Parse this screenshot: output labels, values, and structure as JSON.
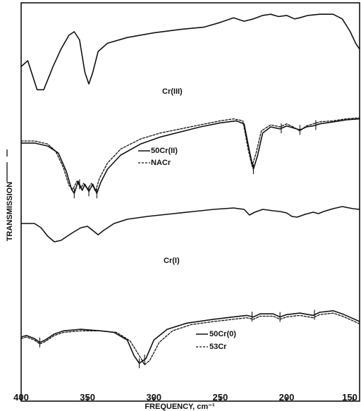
{
  "chart_data": {
    "type": "line",
    "xlabel": "FREQUENCY, cm⁻¹",
    "ylabel": "TRANSMISSION",
    "xlim": [
      400,
      145
    ],
    "x_ticks": [
      "400",
      "350",
      "300",
      "250",
      "200",
      "150"
    ],
    "x_tick_values": [
      400,
      350,
      300,
      250,
      200,
      150
    ],
    "grid": false,
    "legend": "none",
    "panels": [
      {
        "label": "Cr(III)",
        "series": [
          {
            "style": "solid",
            "points": [
              [
                400,
                0.55
              ],
              [
                395,
                0.6
              ],
              [
                388,
                0.35
              ],
              [
                383,
                0.35
              ],
              [
                376,
                0.55
              ],
              [
                370,
                0.7
              ],
              [
                364,
                0.82
              ],
              [
                360,
                0.85
              ],
              [
                356,
                0.78
              ],
              [
                352,
                0.5
              ],
              [
                349,
                0.4
              ],
              [
                346,
                0.5
              ],
              [
                342,
                0.68
              ],
              [
                335,
                0.75
              ],
              [
                320,
                0.8
              ],
              [
                300,
                0.84
              ],
              [
                280,
                0.87
              ],
              [
                262,
                0.89
              ],
              [
                250,
                0.93
              ],
              [
                240,
                0.97
              ],
              [
                232,
                0.94
              ],
              [
                225,
                0.96
              ],
              [
                218,
                0.99
              ],
              [
                212,
                1.0
              ],
              [
                206,
                0.98
              ],
              [
                200,
                0.99
              ],
              [
                194,
                0.96
              ],
              [
                190,
                0.97
              ],
              [
                184,
                0.99
              ],
              [
                175,
                1.0
              ],
              [
                165,
                1.0
              ],
              [
                158,
                0.96
              ],
              [
                152,
                0.85
              ],
              [
                148,
                0.75
              ],
              [
                145,
                0.7
              ]
            ]
          }
        ]
      },
      {
        "label": "",
        "legend_entries": [
          {
            "label": "50Cr(II)",
            "style": "solid"
          },
          {
            "label": "NACr",
            "style": "dashed"
          }
        ],
        "series": [
          {
            "style": "solid",
            "points": [
              [
                400,
                0.68
              ],
              [
                390,
                0.68
              ],
              [
                380,
                0.65
              ],
              [
                372,
                0.58
              ],
              [
                366,
                0.4
              ],
              [
                362,
                0.22
              ],
              [
                360,
                0.18
              ],
              [
                357,
                0.3
              ],
              [
                354,
                0.21
              ],
              [
                352,
                0.27
              ],
              [
                349,
                0.2
              ],
              [
                346,
                0.27
              ],
              [
                343,
                0.18
              ],
              [
                340,
                0.29
              ],
              [
                335,
                0.42
              ],
              [
                325,
                0.56
              ],
              [
                310,
                0.67
              ],
              [
                295,
                0.74
              ],
              [
                280,
                0.79
              ],
              [
                265,
                0.84
              ],
              [
                250,
                0.88
              ],
              [
                238,
                0.9
              ],
              [
                232,
                0.87
              ],
              [
                228,
                0.6
              ],
              [
                225,
                0.42
              ],
              [
                222,
                0.55
              ],
              [
                218,
                0.78
              ],
              [
                212,
                0.84
              ],
              [
                205,
                0.82
              ],
              [
                200,
                0.85
              ],
              [
                195,
                0.83
              ],
              [
                190,
                0.81
              ],
              [
                185,
                0.84
              ],
              [
                180,
                0.85
              ],
              [
                175,
                0.87
              ],
              [
                165,
                0.89
              ],
              [
                155,
                0.91
              ],
              [
                145,
                0.92
              ]
            ]
          },
          {
            "style": "dashed",
            "points": [
              [
                400,
                0.7
              ],
              [
                390,
                0.7
              ],
              [
                380,
                0.67
              ],
              [
                374,
                0.6
              ],
              [
                368,
                0.43
              ],
              [
                364,
                0.26
              ],
              [
                361,
                0.22
              ],
              [
                358,
                0.3
              ],
              [
                355,
                0.23
              ],
              [
                353,
                0.28
              ],
              [
                350,
                0.22
              ],
              [
                347,
                0.28
              ],
              [
                344,
                0.2
              ],
              [
                341,
                0.33
              ],
              [
                335,
                0.48
              ],
              [
                325,
                0.62
              ],
              [
                310,
                0.72
              ],
              [
                295,
                0.78
              ],
              [
                280,
                0.82
              ],
              [
                265,
                0.86
              ],
              [
                250,
                0.9
              ],
              [
                240,
                0.92
              ],
              [
                233,
                0.9
              ],
              [
                229,
                0.62
              ],
              [
                226,
                0.45
              ],
              [
                223,
                0.58
              ],
              [
                219,
                0.8
              ],
              [
                212,
                0.86
              ],
              [
                205,
                0.84
              ],
              [
                200,
                0.87
              ],
              [
                195,
                0.84
              ],
              [
                190,
                0.8
              ],
              [
                185,
                0.85
              ],
              [
                180,
                0.87
              ],
              [
                175,
                0.89
              ],
              [
                165,
                0.9
              ],
              [
                155,
                0.92
              ],
              [
                145,
                0.93
              ]
            ]
          }
        ]
      },
      {
        "label": "Cr(I)",
        "series": [
          {
            "style": "solid",
            "points": [
              [
                400,
                0.78
              ],
              [
                390,
                0.78
              ],
              [
                385,
                0.72
              ],
              [
                380,
                0.6
              ],
              [
                375,
                0.52
              ],
              [
                370,
                0.54
              ],
              [
                362,
                0.64
              ],
              [
                355,
                0.72
              ],
              [
                350,
                0.74
              ],
              [
                346,
                0.68
              ],
              [
                342,
                0.62
              ],
              [
                338,
                0.68
              ],
              [
                330,
                0.78
              ],
              [
                320,
                0.84
              ],
              [
                305,
                0.88
              ],
              [
                285,
                0.92
              ],
              [
                270,
                0.95
              ],
              [
                255,
                0.98
              ],
              [
                240,
                1.0
              ],
              [
                232,
                0.98
              ],
              [
                228,
                0.9
              ],
              [
                224,
                0.94
              ],
              [
                218,
                0.98
              ],
              [
                210,
                0.96
              ],
              [
                205,
                0.95
              ],
              [
                200,
                0.93
              ],
              [
                196,
                0.88
              ],
              [
                192,
                0.87
              ],
              [
                186,
                0.91
              ],
              [
                180,
                0.94
              ],
              [
                176,
                0.92
              ],
              [
                172,
                0.95
              ],
              [
                165,
                0.99
              ],
              [
                158,
                1.02
              ],
              [
                150,
                0.99
              ],
              [
                145,
                0.98
              ]
            ]
          }
        ]
      },
      {
        "label": "",
        "legend_entries": [
          {
            "label": "50Cr(0)",
            "style": "solid"
          },
          {
            "label": "53Cr",
            "style": "dashed"
          }
        ],
        "series": [
          {
            "style": "solid",
            "points": [
              [
                400,
                0.52
              ],
              [
                396,
                0.54
              ],
              [
                390,
                0.5
              ],
              [
                386,
                0.45
              ],
              [
                382,
                0.48
              ],
              [
                375,
                0.56
              ],
              [
                368,
                0.6
              ],
              [
                355,
                0.62
              ],
              [
                340,
                0.6
              ],
              [
                330,
                0.58
              ],
              [
                320,
                0.48
              ],
              [
                315,
                0.28
              ],
              [
                311,
                0.18
              ],
              [
                306,
                0.24
              ],
              [
                300,
                0.48
              ],
              [
                290,
                0.62
              ],
              [
                275,
                0.7
              ],
              [
                255,
                0.75
              ],
              [
                240,
                0.78
              ],
              [
                230,
                0.8
              ],
              [
                225,
                0.78
              ],
              [
                220,
                0.82
              ],
              [
                210,
                0.82
              ],
              [
                205,
                0.78
              ],
              [
                200,
                0.81
              ],
              [
                190,
                0.83
              ],
              [
                180,
                0.8
              ],
              [
                175,
                0.84
              ],
              [
                165,
                0.86
              ],
              [
                158,
                0.82
              ],
              [
                150,
                0.76
              ],
              [
                145,
                0.72
              ]
            ]
          },
          {
            "style": "dashed",
            "points": [
              [
                400,
                0.5
              ],
              [
                396,
                0.52
              ],
              [
                390,
                0.48
              ],
              [
                386,
                0.43
              ],
              [
                382,
                0.46
              ],
              [
                375,
                0.54
              ],
              [
                368,
                0.58
              ],
              [
                355,
                0.6
              ],
              [
                340,
                0.6
              ],
              [
                328,
                0.58
              ],
              [
                318,
                0.47
              ],
              [
                311,
                0.28
              ],
              [
                307,
                0.16
              ],
              [
                303,
                0.22
              ],
              [
                296,
                0.45
              ],
              [
                286,
                0.6
              ],
              [
                272,
                0.68
              ],
              [
                255,
                0.72
              ],
              [
                240,
                0.75
              ],
              [
                230,
                0.77
              ],
              [
                225,
                0.75
              ],
              [
                220,
                0.79
              ],
              [
                210,
                0.79
              ],
              [
                205,
                0.75
              ],
              [
                200,
                0.78
              ],
              [
                190,
                0.8
              ],
              [
                180,
                0.77
              ],
              [
                175,
                0.81
              ],
              [
                165,
                0.83
              ],
              [
                158,
                0.79
              ],
              [
                150,
                0.73
              ],
              [
                145,
                0.69
              ]
            ]
          }
        ]
      }
    ],
    "tick_marks": [
      {
        "panel": 1,
        "x": [
          360,
          356,
          349,
          343,
          225,
          204,
          190,
          178
        ]
      },
      {
        "panel": 3,
        "x": [
          386,
          311,
          307,
          226,
          205,
          179
        ]
      }
    ]
  }
}
